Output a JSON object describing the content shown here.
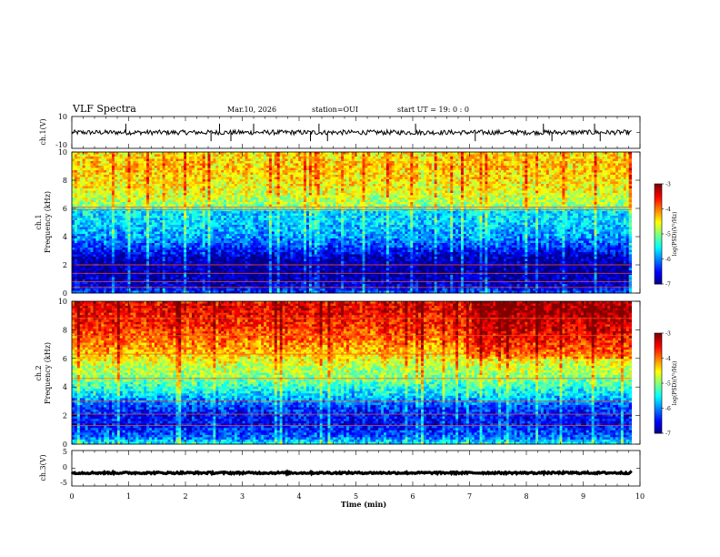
{
  "header": {
    "title": "VLF Spectra",
    "date": "Mar.10, 2026",
    "station": "station=OUI",
    "start": "start  UT =   19: 0  : 0"
  },
  "chart_data": [
    {
      "type": "line",
      "id": "ch1",
      "ylabel": "ch.1(V)",
      "yticks": [
        "10",
        "-10"
      ],
      "ylim": [
        -10,
        10
      ],
      "xlim": [
        0,
        10
      ],
      "baseline": 0,
      "noise_amplitude": 1.5,
      "spike_x": [
        0.95,
        2.45,
        2.6,
        2.8,
        3.2,
        4.2,
        4.35,
        4.5,
        6.05,
        7.1,
        8.3,
        8.45,
        9.2,
        9.3
      ],
      "color": "#000000"
    },
    {
      "type": "heatmap",
      "id": "ch1_spectrogram",
      "ylabel": "ch.1\nFrequency (kHz)",
      "ylabel_line1": "ch.1",
      "ylabel_line2": "Frequency (kHz)",
      "yticks": [
        "0",
        "2",
        "4",
        "6",
        "8",
        "10"
      ],
      "ylim": [
        0,
        10
      ],
      "xlim": [
        0,
        9.85
      ],
      "colorbar": {
        "label": "log(PSD)(V²/Hz)",
        "ticks": [
          "-3",
          "-4",
          "-5",
          "-6",
          "-7"
        ],
        "range": [
          -7,
          -3
        ]
      },
      "freq_profile": [
        {
          "f": 0,
          "v": -6.2
        },
        {
          "f": 0.5,
          "v": -6.7
        },
        {
          "f": 1.5,
          "v": -6.9
        },
        {
          "f": 2.5,
          "v": -6.8
        },
        {
          "f": 3.2,
          "v": -6.3
        },
        {
          "f": 4.0,
          "v": -5.9
        },
        {
          "f": 5.0,
          "v": -5.7
        },
        {
          "f": 5.8,
          "v": -5.6
        },
        {
          "f": 6.2,
          "v": -4.9
        },
        {
          "f": 7.5,
          "v": -4.5
        },
        {
          "f": 9.0,
          "v": -4.3
        },
        {
          "f": 10,
          "v": -4.4
        }
      ],
      "horizontal_lines_khz": [
        6.1,
        5.9,
        2.0,
        1.4,
        0.8,
        0.4
      ],
      "bright_after_min": 10
    },
    {
      "type": "heatmap",
      "id": "ch2_spectrogram",
      "ylabel": "ch.2\nFrequency (kHz)",
      "ylabel_line1": "ch.2",
      "ylabel_line2": "Frequency (kHz)",
      "yticks": [
        "0",
        "2",
        "4",
        "6",
        "8",
        "10"
      ],
      "ylim": [
        0,
        10
      ],
      "xlim": [
        0,
        9.85
      ],
      "colorbar": {
        "label": "log(PSD)(V²/Hz)",
        "ticks": [
          "-3",
          "-4",
          "-5",
          "-6",
          "-7"
        ],
        "range": [
          -7,
          -3
        ]
      },
      "freq_profile": [
        {
          "f": 0,
          "v": -5.4
        },
        {
          "f": 0.5,
          "v": -6.1
        },
        {
          "f": 1.5,
          "v": -6.5
        },
        {
          "f": 2.5,
          "v": -6.3
        },
        {
          "f": 3.5,
          "v": -5.6
        },
        {
          "f": 4.5,
          "v": -5.0
        },
        {
          "f": 5.5,
          "v": -4.7
        },
        {
          "f": 6.5,
          "v": -4.2
        },
        {
          "f": 8.0,
          "v": -3.7
        },
        {
          "f": 9.5,
          "v": -3.4
        },
        {
          "f": 10,
          "v": -3.5
        }
      ],
      "horizontal_lines_khz": [
        8.8,
        7.6,
        6.3,
        4.6,
        3.0,
        2.1,
        1.3
      ],
      "bright_after_min": 7.0
    },
    {
      "type": "line",
      "id": "ch3",
      "ylabel": "ch.3(V)",
      "yticks": [
        "5",
        "0",
        "-5"
      ],
      "ylim": [
        -5,
        5
      ],
      "xlim": [
        0,
        10
      ],
      "baseline": -1.3,
      "noise_amplitude": 0.25,
      "spike_x": [],
      "color": "#000000"
    }
  ],
  "xaxis": {
    "label": "Time (min)",
    "ticks": [
      "0",
      "1",
      "2",
      "3",
      "4",
      "5",
      "6",
      "7",
      "8",
      "9",
      "10"
    ],
    "range": [
      0,
      10
    ]
  }
}
